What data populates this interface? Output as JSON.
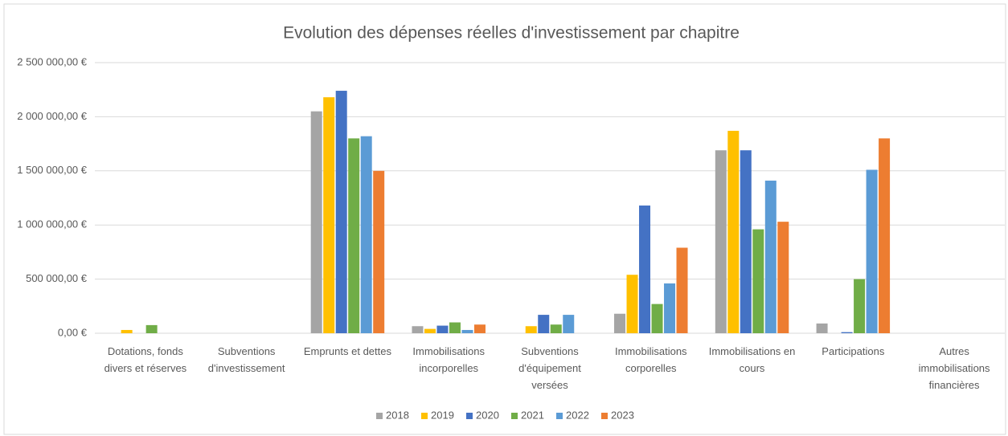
{
  "chart_data": {
    "type": "bar",
    "title": "Evolution des dépenses réelles d'investissement par chapitre",
    "categories": [
      "Dotations, fonds divers et réserves",
      "Subventions d'investissement",
      "Emprunts et dettes",
      "Immobilisations incorporelles",
      "Subventions d'équipement versées",
      "Immobilisations corporelles",
      "Immobilisations en cours",
      "Participations",
      "Autres immobilisations financières"
    ],
    "series": [
      {
        "name": "2018",
        "color": "#a5a5a5",
        "values": [
          0,
          0,
          2050000,
          65000,
          0,
          180000,
          1690000,
          90000,
          0
        ]
      },
      {
        "name": "2019",
        "color": "#ffc000",
        "values": [
          30000,
          0,
          2180000,
          40000,
          65000,
          540000,
          1870000,
          0,
          0
        ]
      },
      {
        "name": "2020",
        "color": "#4472c4",
        "values": [
          0,
          0,
          2240000,
          70000,
          170000,
          1180000,
          1690000,
          10000,
          0
        ]
      },
      {
        "name": "2021",
        "color": "#70ad47",
        "values": [
          75000,
          0,
          1800000,
          100000,
          80000,
          270000,
          960000,
          500000,
          0
        ]
      },
      {
        "name": "2022",
        "color": "#5b9bd5",
        "values": [
          0,
          0,
          1820000,
          30000,
          170000,
          460000,
          1410000,
          1510000,
          0
        ]
      },
      {
        "name": "2023",
        "color": "#ed7d31",
        "values": [
          0,
          0,
          1500000,
          80000,
          0,
          790000,
          1030000,
          1800000,
          0
        ]
      }
    ],
    "ylim": [
      0,
      2500000
    ],
    "yticks": [
      {
        "value": 0,
        "label": "0,00 €"
      },
      {
        "value": 500000,
        "label": "500 000,00 €"
      },
      {
        "value": 1000000,
        "label": "1 000 000,00 €"
      },
      {
        "value": 1500000,
        "label": "1 500 000,00 €"
      },
      {
        "value": 2000000,
        "label": "2 000 000,00 €"
      },
      {
        "value": 2500000,
        "label": "2 500 000,00 €"
      }
    ],
    "grid": true,
    "legend": "bottom"
  }
}
